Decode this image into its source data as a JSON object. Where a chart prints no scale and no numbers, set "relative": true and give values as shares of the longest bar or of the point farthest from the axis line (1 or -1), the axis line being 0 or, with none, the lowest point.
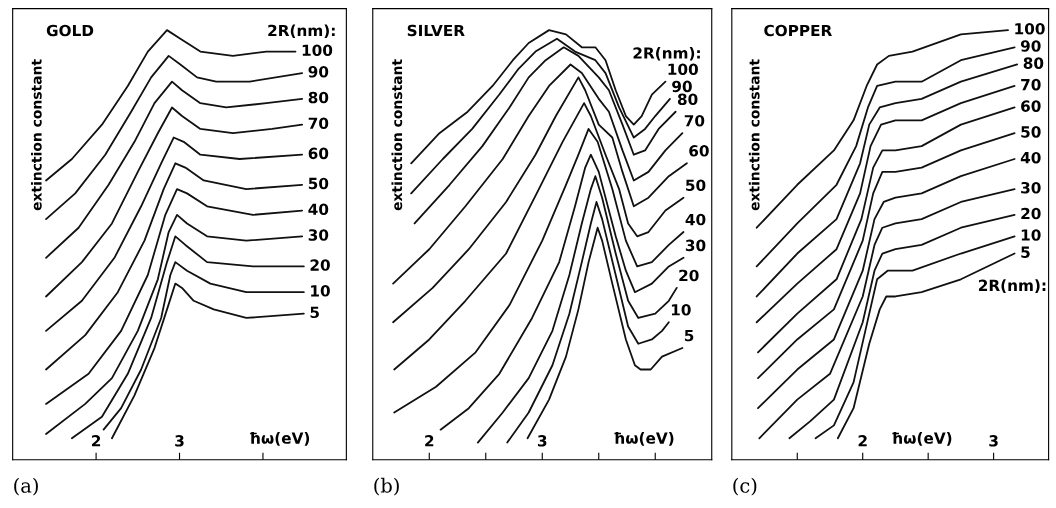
{
  "chart_data": [
    {
      "type": "line",
      "title": "GOLD",
      "xlabel": "ħω(eV)",
      "ylabel": "extinction constant",
      "relative": true,
      "annotations": [
        "2R(nm):",
        "(a)"
      ],
      "xlim": [
        1,
        5
      ],
      "xticks": [
        2,
        3,
        {
          "value": 4,
          "label": null
        }
      ],
      "series": [
        {
          "name": "100",
          "color": "#111111",
          "x": [
            1.4,
            1.71,
            2.07,
            2.38,
            2.62,
            2.85,
            3.01,
            3.25,
            3.64,
            4.04,
            4.39
          ],
          "values": [
            0.65,
            0.7,
            0.78,
            0.87,
            0.95,
            1.0,
            0.98,
            0.95,
            0.94,
            0.95,
            0.95
          ]
        },
        {
          "name": "90",
          "color": "#111111",
          "x": [
            1.4,
            1.75,
            2.11,
            2.42,
            2.66,
            2.87,
            3.01,
            3.21,
            3.44,
            3.84,
            4.47
          ],
          "values": [
            0.56,
            0.62,
            0.71,
            0.81,
            0.89,
            0.94,
            0.92,
            0.89,
            0.88,
            0.88,
            0.9
          ]
        },
        {
          "name": "80",
          "color": "#111111",
          "x": [
            1.4,
            1.79,
            2.15,
            2.46,
            2.7,
            2.91,
            3.03,
            3.25,
            3.56,
            4.04,
            4.47
          ],
          "values": [
            0.47,
            0.54,
            0.64,
            0.74,
            0.83,
            0.88,
            0.86,
            0.83,
            0.82,
            0.83,
            0.84
          ]
        },
        {
          "name": "70",
          "color": "#111111",
          "x": [
            1.4,
            1.83,
            2.19,
            2.5,
            2.74,
            2.91,
            3.03,
            3.25,
            3.64,
            4.11,
            4.47
          ],
          "values": [
            0.38,
            0.46,
            0.55,
            0.67,
            0.76,
            0.82,
            0.8,
            0.77,
            0.76,
            0.77,
            0.78
          ]
        },
        {
          "name": "60",
          "color": "#111111",
          "x": [
            1.4,
            1.83,
            2.22,
            2.54,
            2.78,
            2.93,
            3.05,
            3.25,
            3.72,
            4.47
          ],
          "values": [
            0.3,
            0.37,
            0.47,
            0.59,
            0.69,
            0.75,
            0.74,
            0.71,
            0.7,
            0.71
          ]
        },
        {
          "name": "50",
          "color": "#111111",
          "x": [
            1.4,
            1.87,
            2.26,
            2.58,
            2.81,
            2.95,
            3.07,
            3.29,
            3.8,
            4.47
          ],
          "values": [
            0.21,
            0.29,
            0.39,
            0.51,
            0.63,
            0.69,
            0.68,
            0.65,
            0.63,
            0.64
          ]
        },
        {
          "name": "40",
          "color": "#111111",
          "x": [
            1.4,
            1.91,
            2.3,
            2.62,
            2.83,
            2.97,
            3.09,
            3.33,
            3.88,
            4.47
          ],
          "values": [
            0.13,
            0.2,
            0.3,
            0.43,
            0.57,
            0.63,
            0.62,
            0.59,
            0.57,
            0.58
          ]
        },
        {
          "name": "30",
          "color": "#111111",
          "x": [
            1.4,
            1.87,
            2.19,
            2.5,
            2.74,
            2.87,
            2.97,
            3.09,
            3.33,
            3.8,
            4.47
          ],
          "values": [
            0.06,
            0.13,
            0.19,
            0.3,
            0.42,
            0.53,
            0.57,
            0.55,
            0.52,
            0.51,
            0.52
          ]
        },
        {
          "name": "20",
          "color": "#111111",
          "x": [
            1.71,
            2.07,
            2.38,
            2.66,
            2.85,
            2.95,
            3.07,
            3.33,
            3.88,
            4.49
          ],
          "values": [
            0.05,
            0.1,
            0.2,
            0.33,
            0.46,
            0.52,
            0.5,
            0.46,
            0.45,
            0.45
          ]
        },
        {
          "name": "10",
          "color": "#111111",
          "x": [
            2.09,
            2.3,
            2.54,
            2.78,
            2.89,
            2.95,
            3.09,
            3.37,
            3.8,
            4.49
          ],
          "values": [
            0.07,
            0.12,
            0.21,
            0.33,
            0.43,
            0.46,
            0.44,
            0.41,
            0.39,
            0.39
          ]
        },
        {
          "name": "5",
          "color": "#111111",
          "x": [
            2.19,
            2.46,
            2.7,
            2.85,
            2.95,
            3.03,
            3.17,
            3.41,
            3.8,
            4.49
          ],
          "values": [
            0.05,
            0.15,
            0.26,
            0.35,
            0.41,
            0.4,
            0.37,
            0.35,
            0.33,
            0.34
          ]
        }
      ]
    },
    {
      "type": "line",
      "title": "SILVER",
      "xlabel": "ħω(eV)",
      "ylabel": "extinction constant",
      "relative": true,
      "annotations": [
        "2R(nm):",
        "(b)"
      ],
      "xlim": [
        1.5,
        4.5
      ],
      "xticks": [
        2,
        {
          "value": 2.5,
          "label": null
        },
        3,
        {
          "value": 3.5,
          "label": null
        },
        {
          "value": 4,
          "label": null
        }
      ],
      "series": [
        {
          "name": "100",
          "color": "#111111",
          "x": [
            1.84,
            2.09,
            2.34,
            2.56,
            2.74,
            2.88,
            3.06,
            3.21,
            3.35,
            3.47,
            3.56,
            3.65,
            3.74,
            3.81,
            3.88,
            3.97,
            4.09
          ],
          "values": [
            0.69,
            0.76,
            0.81,
            0.87,
            0.93,
            0.97,
            1.0,
            0.99,
            0.96,
            0.96,
            0.93,
            0.86,
            0.8,
            0.78,
            0.8,
            0.85,
            0.88
          ]
        },
        {
          "name": "90",
          "color": "#111111",
          "x": [
            1.84,
            2.12,
            2.38,
            2.62,
            2.79,
            2.94,
            3.13,
            3.29,
            3.47,
            3.56,
            3.68,
            3.81,
            3.91,
            4.0,
            4.13
          ],
          "values": [
            0.62,
            0.7,
            0.77,
            0.85,
            0.91,
            0.95,
            0.98,
            0.95,
            0.93,
            0.9,
            0.82,
            0.75,
            0.77,
            0.8,
            0.84
          ]
        },
        {
          "name": "80",
          "color": "#111111",
          "x": [
            1.87,
            2.18,
            2.47,
            2.71,
            2.88,
            3.03,
            3.19,
            3.32,
            3.5,
            3.59,
            3.71,
            3.81,
            3.91,
            4.03,
            4.18
          ],
          "values": [
            0.55,
            0.64,
            0.73,
            0.82,
            0.89,
            0.93,
            0.96,
            0.94,
            0.89,
            0.86,
            0.78,
            0.71,
            0.72,
            0.77,
            0.81
          ]
        },
        {
          "name": "70",
          "color": "#111111",
          "x": [
            1.68,
            2.0,
            2.32,
            2.65,
            2.88,
            3.06,
            3.25,
            3.35,
            3.5,
            3.59,
            3.71,
            3.81,
            3.94,
            4.09,
            4.24
          ],
          "values": [
            0.41,
            0.49,
            0.59,
            0.7,
            0.8,
            0.87,
            0.92,
            0.9,
            0.84,
            0.81,
            0.72,
            0.65,
            0.67,
            0.72,
            0.76
          ]
        },
        {
          "name": "60",
          "color": "#111111",
          "x": [
            1.68,
            2.03,
            2.35,
            2.68,
            2.94,
            3.12,
            3.32,
            3.38,
            3.5,
            3.62,
            3.71,
            3.81,
            3.94,
            4.12,
            4.28
          ],
          "values": [
            0.32,
            0.4,
            0.49,
            0.6,
            0.71,
            0.8,
            0.89,
            0.86,
            0.78,
            0.75,
            0.67,
            0.59,
            0.61,
            0.66,
            0.69
          ]
        },
        {
          "name": "50",
          "color": "#111111",
          "x": [
            1.69,
            2.0,
            2.32,
            2.68,
            2.97,
            3.18,
            3.37,
            3.43,
            3.56,
            3.68,
            3.76,
            3.84,
            3.94,
            4.09,
            4.25
          ],
          "values": [
            0.21,
            0.28,
            0.37,
            0.48,
            0.63,
            0.74,
            0.83,
            0.8,
            0.71,
            0.63,
            0.55,
            0.52,
            0.53,
            0.58,
            0.61
          ]
        },
        {
          "name": "40",
          "color": "#111111",
          "x": [
            1.69,
            2.06,
            2.41,
            2.71,
            3.0,
            3.21,
            3.32,
            3.41,
            3.49,
            3.62,
            3.74,
            3.84,
            3.97,
            4.12,
            4.25
          ],
          "values": [
            0.11,
            0.17,
            0.25,
            0.36,
            0.51,
            0.64,
            0.71,
            0.77,
            0.74,
            0.63,
            0.51,
            0.45,
            0.46,
            0.5,
            0.53
          ]
        },
        {
          "name": "30",
          "color": "#111111",
          "x": [
            2.1,
            2.35,
            2.62,
            2.91,
            3.15,
            3.29,
            3.38,
            3.43,
            3.5,
            3.65,
            3.74,
            3.82,
            3.97,
            4.12,
            4.25
          ],
          "values": [
            0.07,
            0.12,
            0.2,
            0.33,
            0.46,
            0.59,
            0.68,
            0.71,
            0.67,
            0.52,
            0.44,
            0.39,
            0.41,
            0.45,
            0.47
          ]
        },
        {
          "name": "20",
          "color": "#111111",
          "x": [
            2.43,
            2.65,
            2.88,
            3.09,
            3.24,
            3.35,
            3.43,
            3.47,
            3.53,
            3.65,
            3.76,
            3.85,
            4.0,
            4.12,
            4.19
          ],
          "values": [
            0.04,
            0.11,
            0.19,
            0.3,
            0.43,
            0.55,
            0.63,
            0.66,
            0.61,
            0.48,
            0.37,
            0.33,
            0.34,
            0.37,
            0.4
          ]
        },
        {
          "name": "10",
          "color": "#111111",
          "x": [
            2.69,
            2.88,
            3.09,
            3.24,
            3.35,
            3.43,
            3.48,
            3.53,
            3.65,
            3.76,
            3.85,
            3.97,
            4.06,
            4.12
          ],
          "values": [
            0.04,
            0.11,
            0.22,
            0.34,
            0.46,
            0.55,
            0.6,
            0.56,
            0.43,
            0.31,
            0.27,
            0.28,
            0.3,
            0.32
          ]
        },
        {
          "name": "5",
          "color": "#111111",
          "x": [
            2.87,
            3.06,
            3.21,
            3.32,
            3.41,
            3.49,
            3.53,
            3.62,
            3.74,
            3.82,
            3.87,
            3.96,
            4.06,
            4.24
          ],
          "values": [
            0.05,
            0.14,
            0.24,
            0.35,
            0.46,
            0.54,
            0.51,
            0.41,
            0.28,
            0.22,
            0.21,
            0.21,
            0.24,
            0.26
          ]
        }
      ]
    },
    {
      "type": "line",
      "title": "COPPER",
      "xlabel": "ħω(eV)",
      "ylabel": "extinction constant",
      "relative": true,
      "annotations": [
        "2R(nm):",
        "(c)"
      ],
      "xlim": [
        1,
        3.42
      ],
      "xticks": [
        {
          "value": 1.5,
          "label": null
        },
        2,
        {
          "value": 2.5,
          "label": null
        },
        3
      ],
      "series": [
        {
          "name": "100",
          "color": "#111111",
          "x": [
            1.19,
            1.5,
            1.78,
            1.93,
            2.03,
            2.11,
            2.2,
            2.38,
            2.75,
            3.11
          ],
          "values": [
            0.54,
            0.64,
            0.72,
            0.79,
            0.87,
            0.92,
            0.94,
            0.95,
            0.99,
            1.0
          ]
        },
        {
          "name": "90",
          "color": "#111111",
          "x": [
            1.19,
            1.5,
            1.8,
            1.95,
            2.04,
            2.11,
            2.25,
            2.45,
            2.75,
            3.16
          ],
          "values": [
            0.45,
            0.55,
            0.64,
            0.73,
            0.82,
            0.87,
            0.88,
            0.88,
            0.93,
            0.96
          ]
        },
        {
          "name": "80",
          "color": "#111111",
          "x": [
            1.19,
            1.5,
            1.8,
            1.98,
            2.05,
            2.13,
            2.25,
            2.45,
            2.75,
            3.18
          ],
          "values": [
            0.38,
            0.48,
            0.56,
            0.69,
            0.78,
            0.82,
            0.83,
            0.84,
            0.88,
            0.92
          ]
        },
        {
          "name": "70",
          "color": "#111111",
          "x": [
            1.19,
            1.5,
            1.8,
            1.98,
            2.06,
            2.14,
            2.25,
            2.45,
            2.75,
            3.16
          ],
          "values": [
            0.32,
            0.41,
            0.49,
            0.62,
            0.73,
            0.78,
            0.79,
            0.79,
            0.83,
            0.87
          ]
        },
        {
          "name": "60",
          "color": "#111111",
          "x": [
            1.2,
            1.5,
            1.8,
            1.99,
            2.08,
            2.15,
            2.25,
            2.45,
            2.75,
            3.16
          ],
          "values": [
            0.25,
            0.34,
            0.42,
            0.56,
            0.68,
            0.72,
            0.72,
            0.73,
            0.78,
            0.82
          ]
        },
        {
          "name": "50",
          "color": "#111111",
          "x": [
            1.2,
            1.5,
            1.78,
            2.0,
            2.08,
            2.15,
            2.25,
            2.45,
            2.75,
            3.16
          ],
          "values": [
            0.19,
            0.28,
            0.35,
            0.51,
            0.62,
            0.67,
            0.67,
            0.68,
            0.72,
            0.76
          ]
        },
        {
          "name": "40",
          "color": "#111111",
          "x": [
            1.2,
            1.5,
            1.78,
            2.0,
            2.09,
            2.16,
            2.25,
            2.45,
            2.75,
            3.16
          ],
          "values": [
            0.12,
            0.21,
            0.28,
            0.44,
            0.56,
            0.6,
            0.61,
            0.62,
            0.66,
            0.7
          ]
        },
        {
          "name": "30",
          "color": "#111111",
          "x": [
            1.21,
            1.5,
            1.75,
            2.0,
            2.09,
            2.15,
            2.25,
            2.45,
            2.75,
            3.16
          ],
          "values": [
            0.05,
            0.14,
            0.2,
            0.38,
            0.5,
            0.54,
            0.55,
            0.56,
            0.6,
            0.63
          ]
        },
        {
          "name": "20",
          "color": "#111111",
          "x": [
            1.44,
            1.6,
            1.78,
            2.0,
            2.09,
            2.15,
            2.25,
            2.45,
            2.75,
            3.16
          ],
          "values": [
            0.05,
            0.09,
            0.14,
            0.32,
            0.44,
            0.48,
            0.49,
            0.5,
            0.54,
            0.57
          ]
        },
        {
          "name": "10",
          "color": "#111111",
          "x": [
            1.64,
            1.78,
            1.93,
            2.05,
            2.11,
            2.19,
            2.38,
            2.75,
            3.16
          ],
          "values": [
            0.05,
            0.08,
            0.18,
            0.34,
            0.42,
            0.44,
            0.44,
            0.48,
            0.52
          ]
        },
        {
          "name": "5",
          "color": "#111111",
          "x": [
            1.81,
            1.93,
            2.05,
            2.13,
            2.18,
            2.25,
            2.45,
            2.75,
            3.16
          ],
          "values": [
            0.05,
            0.12,
            0.27,
            0.35,
            0.38,
            0.38,
            0.39,
            0.42,
            0.48
          ]
        }
      ]
    }
  ]
}
